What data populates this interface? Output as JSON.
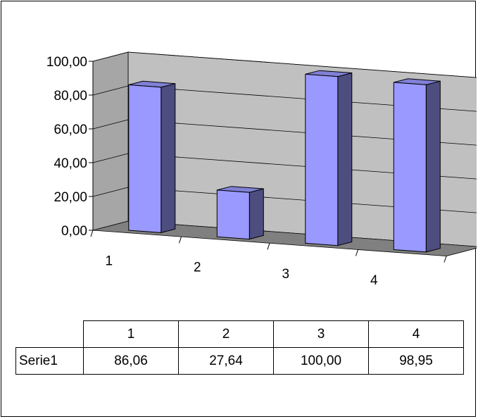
{
  "chart_data": {
    "type": "bar",
    "variant": "3d-column",
    "categories": [
      "1",
      "2",
      "3",
      "4"
    ],
    "series": [
      {
        "name": "Serie1",
        "values": [
          86.06,
          27.64,
          100.0,
          98.95
        ]
      }
    ],
    "data_labels": [
      "86,06",
      "27,64",
      "100,00",
      "98,95"
    ],
    "y_ticks": [
      "0,00",
      "20,00",
      "40,00",
      "60,00",
      "80,00",
      "100,00"
    ],
    "ylim": [
      0,
      100
    ],
    "grid": true,
    "legend": "none",
    "colors": {
      "bar_front": "#9999ff",
      "bar_side": "#4d4d80",
      "bar_top": "#8080d6",
      "back_wall": "#c0c0c0",
      "side_wall": "#a6a6a6",
      "floor": "#808080"
    }
  }
}
